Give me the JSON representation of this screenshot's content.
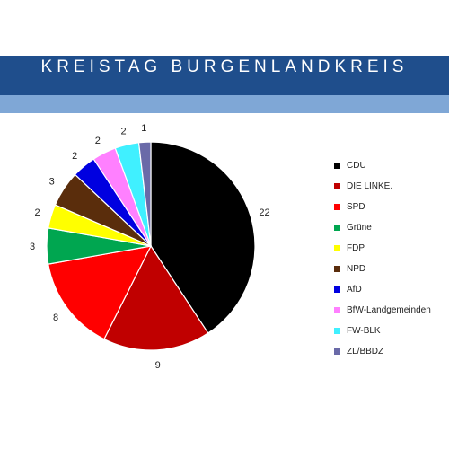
{
  "header": {
    "title": "KREISTAG BURGENLANDKREIS"
  },
  "colors": {
    "banner": "#1f4e8c",
    "banner_light": "#7fa7d6"
  },
  "chart_data": {
    "type": "pie",
    "title": "",
    "start_angle_deg": 0,
    "direction": "clockwise",
    "legend_position": "right",
    "slices": [
      {
        "label": "CDU",
        "value": 22,
        "color": "#000000"
      },
      {
        "label": "DIE LINKE.",
        "value": 9,
        "color": "#c00000"
      },
      {
        "label": "SPD",
        "value": 8,
        "color": "#ff0000"
      },
      {
        "label": "Grüne",
        "value": 3,
        "color": "#00a650"
      },
      {
        "label": "FDP",
        "value": 2,
        "color": "#ffff00"
      },
      {
        "label": "NPD",
        "value": 3,
        "color": "#5a2d0c"
      },
      {
        "label": "AfD",
        "value": 2,
        "color": "#0000e0"
      },
      {
        "label": "BfW-Landgemeinden",
        "value": 2,
        "color": "#ff80ff"
      },
      {
        "label": "FW-BLK",
        "value": 2,
        "color": "#40f0ff"
      },
      {
        "label": "ZL/BBDZ",
        "value": 1,
        "color": "#6a6aa8"
      }
    ]
  }
}
